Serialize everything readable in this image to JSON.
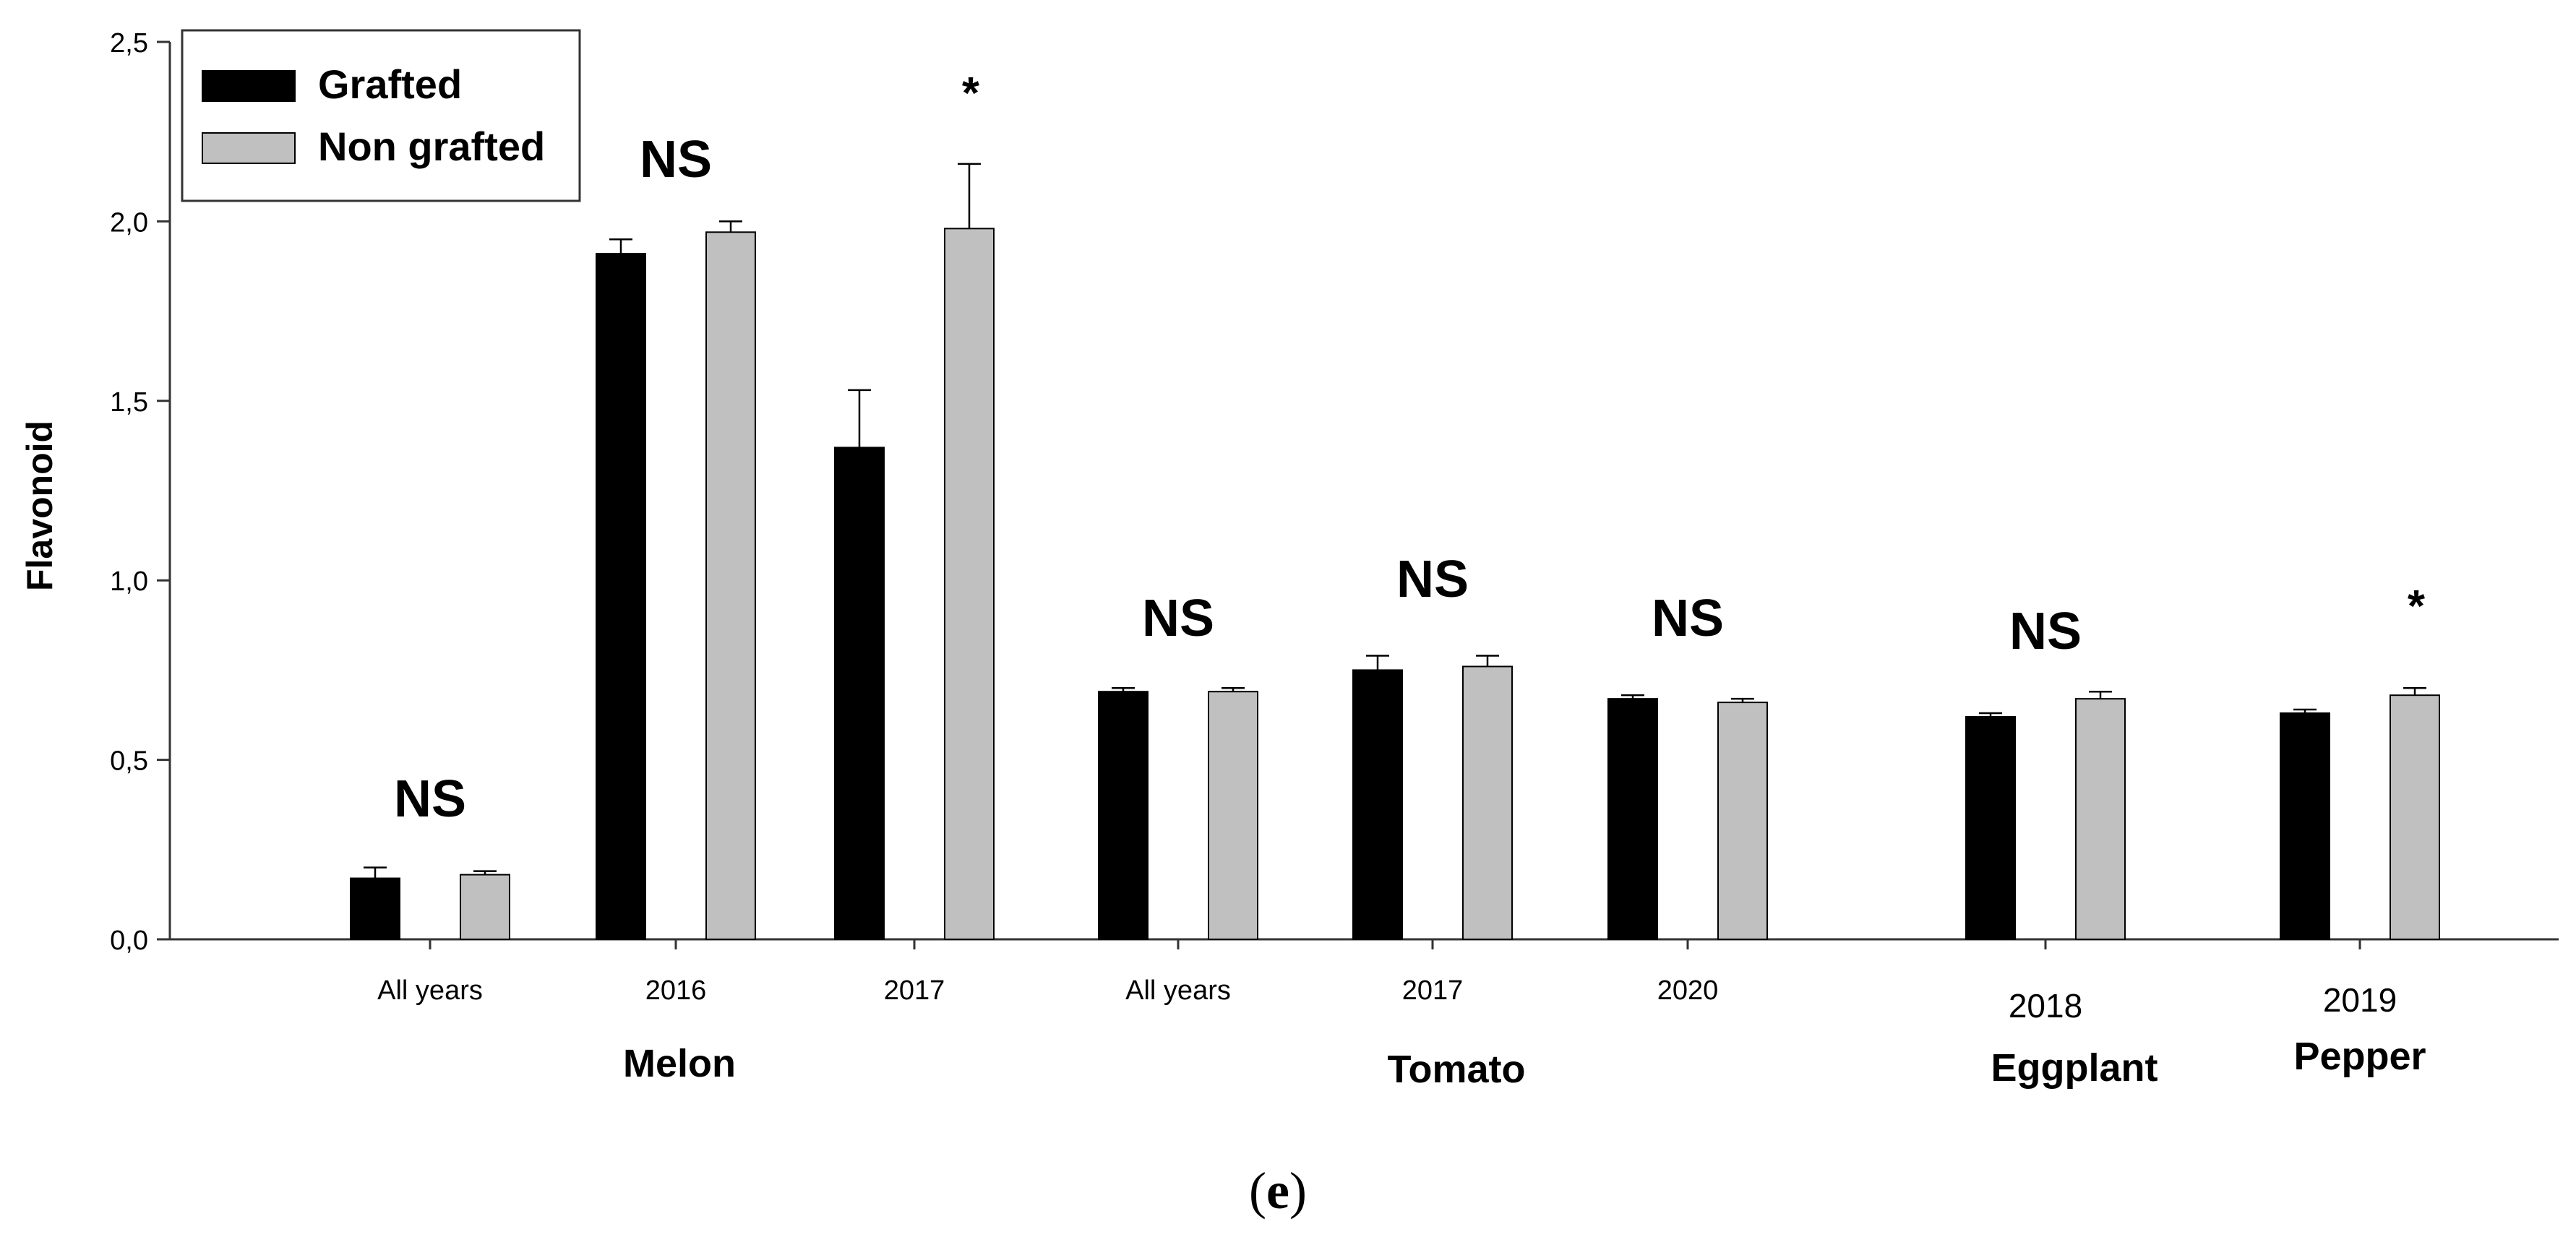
{
  "chart_data": {
    "type": "bar",
    "title": "",
    "ylabel": "Flavonoid",
    "xlabel": "",
    "ylim": [
      0,
      2.5
    ],
    "yticks": [
      "0,0",
      "0,5",
      "1,0",
      "1,5",
      "2,0",
      "2,5"
    ],
    "ytick_values": [
      0,
      0.5,
      1.0,
      1.5,
      2.0,
      2.5
    ],
    "grid": false,
    "legend_position": "top-left",
    "series": [
      {
        "name": "Grafted",
        "color": "#000000"
      },
      {
        "name": "Non grafted",
        "color": "#c0c0c0"
      }
    ],
    "groups": [
      {
        "label": "All years",
        "crop": "Melon",
        "grafted": 0.17,
        "grafted_err": 0.03,
        "non_grafted": 0.18,
        "non_grafted_err": 0.01,
        "significance": "NS"
      },
      {
        "label": "2016",
        "crop": "Melon",
        "grafted": 1.91,
        "grafted_err": 0.04,
        "non_grafted": 1.97,
        "non_grafted_err": 0.03,
        "significance": "NS"
      },
      {
        "label": "2017",
        "crop": "Melon",
        "grafted": 1.37,
        "grafted_err": 0.16,
        "non_grafted": 1.98,
        "non_grafted_err": 0.18,
        "significance": "*"
      },
      {
        "label": "All years",
        "crop": "Tomato",
        "grafted": 0.69,
        "grafted_err": 0.01,
        "non_grafted": 0.69,
        "non_grafted_err": 0.01,
        "significance": "NS"
      },
      {
        "label": "2017",
        "crop": "Tomato",
        "grafted": 0.75,
        "grafted_err": 0.04,
        "non_grafted": 0.76,
        "non_grafted_err": 0.03,
        "significance": "NS"
      },
      {
        "label": "2020",
        "crop": "Tomato",
        "grafted": 0.67,
        "grafted_err": 0.01,
        "non_grafted": 0.66,
        "non_grafted_err": 0.01,
        "significance": "NS"
      },
      {
        "label": "2018",
        "crop": "Eggplant",
        "grafted": 0.62,
        "grafted_err": 0.01,
        "non_grafted": 0.67,
        "non_grafted_err": 0.02,
        "significance": "NS"
      },
      {
        "label": "2019",
        "crop": "Pepper",
        "grafted": 0.63,
        "grafted_err": 0.01,
        "non_grafted": 0.68,
        "non_grafted_err": 0.02,
        "significance": "*"
      }
    ],
    "crop_labels": [
      "Melon",
      "Tomato",
      "Eggplant",
      "Pepper"
    ]
  },
  "figure": {
    "panel_label_open": "(",
    "panel_label_letter": "e",
    "panel_label_close": ")"
  }
}
